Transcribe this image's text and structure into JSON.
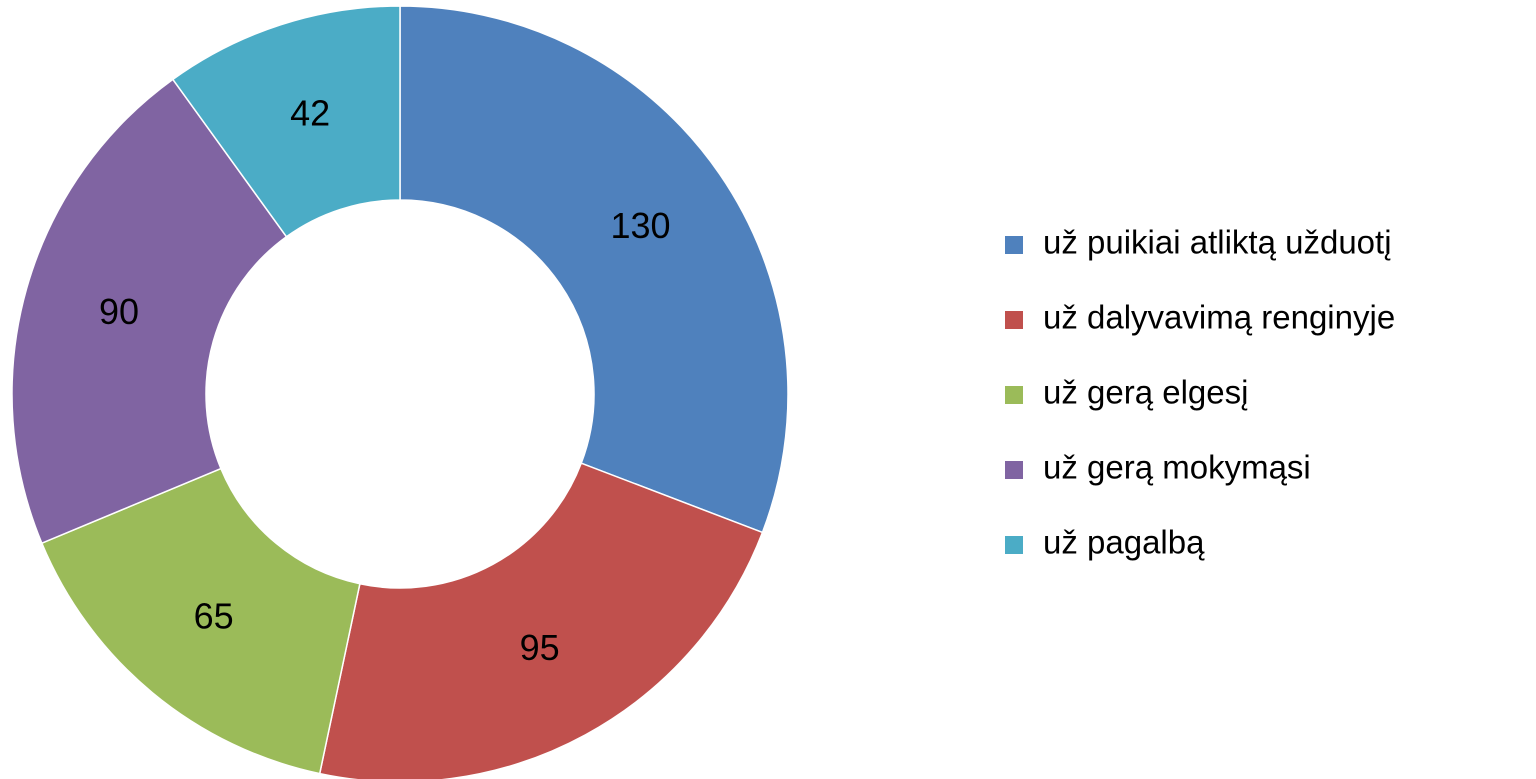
{
  "chart_data": {
    "type": "donut",
    "categories": [
      "už puikiai atliktą užduotį",
      "už dalyvavimą renginyje",
      "už gerą elgesį",
      "už gerą mokymąsi",
      "už pagalbą"
    ],
    "values": [
      130,
      95,
      65,
      90,
      42
    ],
    "colors": [
      "#4f81bd",
      "#c0504d",
      "#9bbb59",
      "#8064a2",
      "#4bacc6"
    ],
    "legend": "right"
  }
}
